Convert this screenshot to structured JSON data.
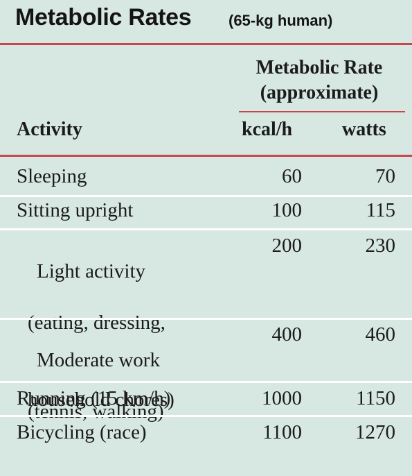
{
  "title": {
    "main": "Metabolic Rates",
    "subtitle": "(65-kg human)"
  },
  "header": {
    "group_label_line1": "Metabolic Rate",
    "group_label_line2": "(approximate)",
    "activity": "Activity",
    "kcal": "kcal/h",
    "watts": "watts"
  },
  "rows": [
    {
      "activity": "Sleeping",
      "sub1": "",
      "sub2": "",
      "kcal": "60",
      "watts": "70"
    },
    {
      "activity": "Sitting upright",
      "sub1": "",
      "sub2": "",
      "kcal": "100",
      "watts": "115"
    },
    {
      "activity": "Light activity",
      "sub1": "(eating, dressing,",
      "sub2": "household chores)",
      "kcal": "200",
      "watts": "230"
    },
    {
      "activity": "Moderate work",
      "sub1": "(tennis, walking)",
      "sub2": "",
      "kcal": "400",
      "watts": "460"
    },
    {
      "activity": "Running (15 km/h)",
      "sub1": "",
      "sub2": "",
      "kcal": "1000",
      "watts": "1150"
    },
    {
      "activity": "Bicycling (race)",
      "sub1": "",
      "sub2": "",
      "kcal": "1100",
      "watts": "1270"
    }
  ],
  "colors": {
    "background": "#d7e7e1",
    "rule": "#c8464e",
    "separator": "#ffffff"
  }
}
